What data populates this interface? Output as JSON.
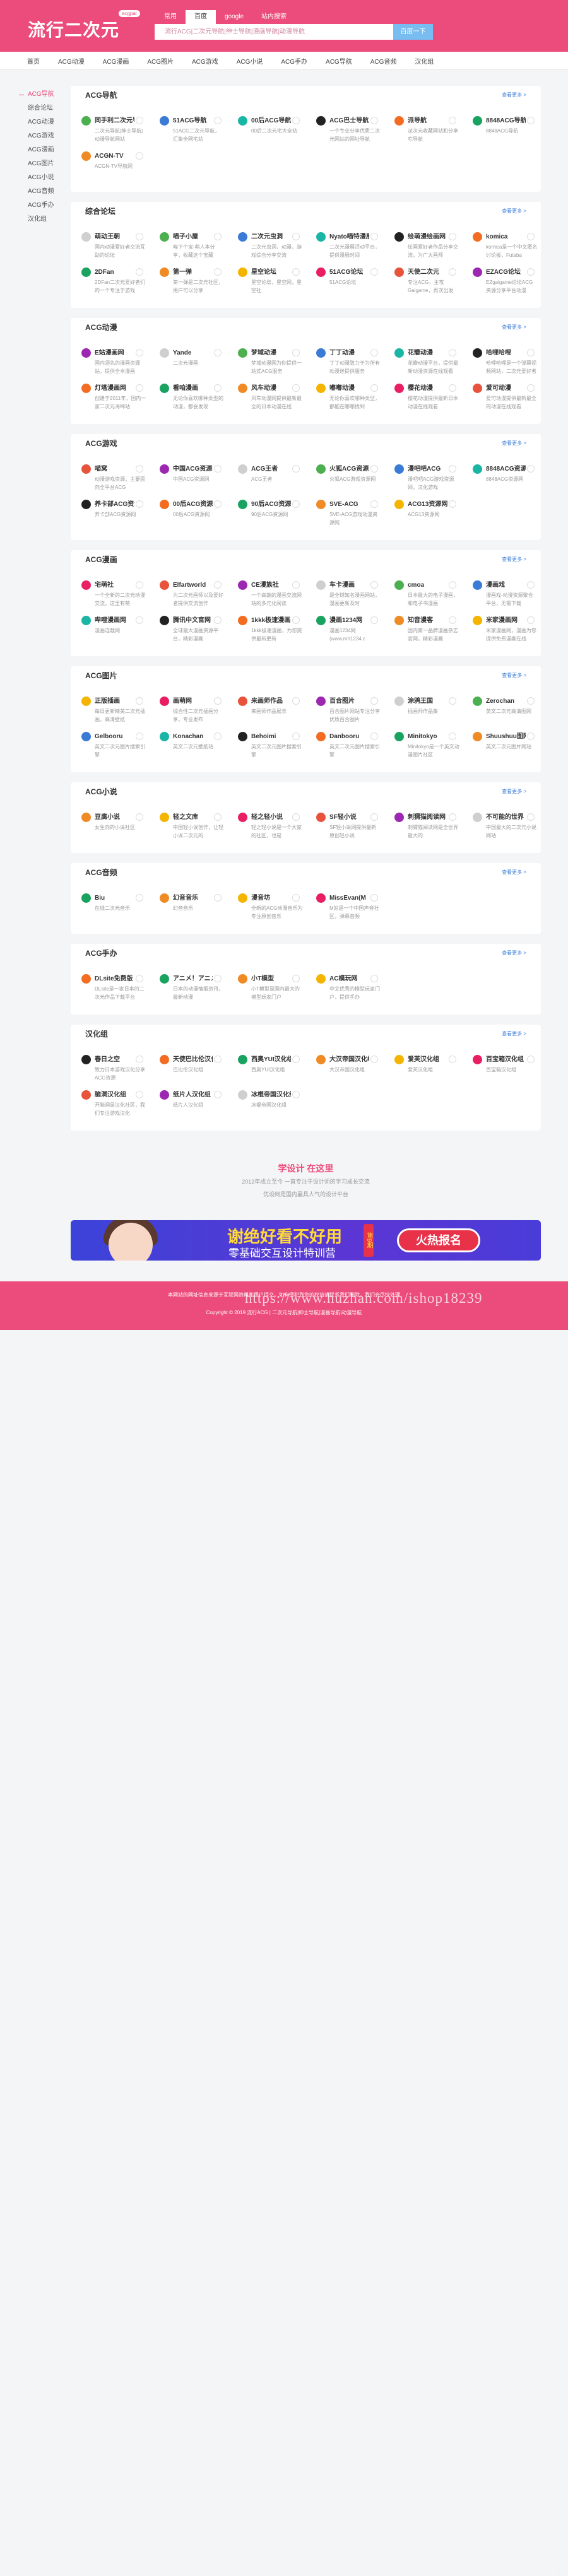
{
  "header": {
    "logo": "流行二次元",
    "logo_badge": "acgpai",
    "tabs": [
      "常用",
      "百度",
      "google",
      "站内搜索"
    ],
    "active_tab": 1,
    "search_placeholder": "流行ACG|二次元导航|绅士导航|漫画导航|动漫导航",
    "search_button": "百度一下"
  },
  "nav": [
    "首页",
    "ACG动漫",
    "ACG漫画",
    "ACG图片",
    "ACG游戏",
    "ACG小说",
    "ACG手办",
    "ACG导航",
    "ACG音频",
    "汉化组"
  ],
  "sidebar": [
    "ACG导航",
    "综合论坛",
    "ACG动漫",
    "ACG游戏",
    "ACG漫画",
    "ACG图片",
    "ACG小说",
    "ACG音频",
    "ACG手办",
    "汉化组"
  ],
  "sidebar_active": 0,
  "more_label": "查看更多 >",
  "sections": [
    {
      "title": "ACG导航",
      "items": [
        {
          "name": "同手利二次元导航",
          "desc": "二次元导航|绅士导航|动漫导航网站"
        },
        {
          "name": "51ACG导航",
          "desc": "51ACG二次元导航，汇集全网宅站"
        },
        {
          "name": "00后ACG导航",
          "desc": "00后二次元宅大全站"
        },
        {
          "name": "ACG巴士导航",
          "desc": "一个专业分享优质二次元网站的网址导航"
        },
        {
          "name": "派导航",
          "desc": "派次元收藏网站和分享宅导航"
        },
        {
          "name": "8848ACG导航",
          "desc": "8848ACG导航"
        },
        {
          "name": "ACGN-TV",
          "desc": "ACGN-TV导航网"
        }
      ]
    },
    {
      "title": "综合论坛",
      "items": [
        {
          "name": "萌动王朝",
          "desc": "国内动漫爱好者交流互助的论坛"
        },
        {
          "name": "喵子小屋",
          "desc": "喵下个宝-萌人本分享，收藏这个宝藏"
        },
        {
          "name": "二次元虫洞",
          "desc": "二次元虫洞，动漫，游戏综合分享交流"
        },
        {
          "name": "Nyato喵特漫展",
          "desc": "二次元漫展活动平台，提供漫展时间"
        },
        {
          "name": "绘萌漫绘画网",
          "desc": "绘画爱好者作品分享交流，为广大画师"
        },
        {
          "name": "komica",
          "desc": "komica是一个中文匿名讨论板，Futaba"
        },
        {
          "name": "2DFan",
          "desc": "2DFan二次元爱好者们的一个专注于游戏"
        },
        {
          "name": "第一弹",
          "desc": "第一弹是二次元社区，用户可以分享"
        },
        {
          "name": "星空论坛",
          "desc": "星空论坛，星空网，星空社"
        },
        {
          "name": "51ACG论坛",
          "desc": "51ACG论坛"
        },
        {
          "name": "天使二次元",
          "desc": "专注ACG，主攻Galgame，再次出发"
        },
        {
          "name": "EZACG论坛",
          "desc": "EZgalgame论坛ACG资源分享平台动漫"
        }
      ]
    },
    {
      "title": "ACG动漫",
      "items": [
        {
          "name": "E站漫画网",
          "desc": "国内领先的漫画资源站，提供全本漫画"
        },
        {
          "name": "Yande",
          "desc": "二次元漫画"
        },
        {
          "name": "梦域动漫",
          "desc": "梦域动漫网为你提供一站式ACG服务"
        },
        {
          "name": "丁丁动漫",
          "desc": "丁丁动漫致力于为所有动漫迷提供服务"
        },
        {
          "name": "花瓣动漫",
          "desc": "花瓣动漫平台，提供最新动漫资源在线观看"
        },
        {
          "name": "哈哩哈哩",
          "desc": "哈哩哈哩是一个弹幕视频网站，二次元爱好者"
        },
        {
          "name": "灯塔漫画网",
          "desc": "创建于2011年，国内一家二次元海绵站"
        },
        {
          "name": "看咱漫画",
          "desc": "无论你喜欢哪种类型的动漫，都会发现"
        },
        {
          "name": "风车动漫",
          "desc": "风车动漫网提供最新最全的日本动漫在线"
        },
        {
          "name": "嘟嘟动漫",
          "desc": "无论你喜欢哪种类型，都能在嘟嘟找到"
        },
        {
          "name": "樱花动漫",
          "desc": "樱花动漫提供最新日本动漫在线观看"
        },
        {
          "name": "爱可动漫",
          "desc": "爱可动漫提供最新最全的动漫在线观看"
        }
      ]
    },
    {
      "title": "ACG游戏",
      "items": [
        {
          "name": "喵窝",
          "desc": "动漫游戏资源，主要面向全平台ACG"
        },
        {
          "name": "中国ACG资源网",
          "desc": "中国ACG资源网"
        },
        {
          "name": "ACG王者",
          "desc": "ACG王者"
        },
        {
          "name": "火狐ACG资源网",
          "desc": "火狐ACG游戏资源网"
        },
        {
          "name": "漫吧吧ACG",
          "desc": "漫吧吧ACG游戏资源网，汉化游戏"
        },
        {
          "name": "8848ACG资源",
          "desc": "8848ACG资源网"
        },
        {
          "name": "养卡部ACG资源",
          "desc": "养卡部ACG资源网"
        },
        {
          "name": "00后ACG资源",
          "desc": "00后ACG资源网"
        },
        {
          "name": "90后ACG资源",
          "desc": "90后ACG资源网"
        },
        {
          "name": "SVE-ACG",
          "desc": "SVE-ACG游戏动漫资源网"
        },
        {
          "name": "ACG13资源网",
          "desc": "ACG13资源网"
        }
      ]
    },
    {
      "title": "ACG漫画",
      "items": [
        {
          "name": "宅萌社",
          "desc": "一个全新的二次元动漫交流，这里有萌"
        },
        {
          "name": "Elfartworld",
          "desc": "为二次元画师以及爱好者提供交流创作"
        },
        {
          "name": "CE漫族社",
          "desc": "一个高端的漫画交流网站的多元化阅读"
        },
        {
          "name": "车卡漫画",
          "desc": "是全球知名漫画网站，漫画更新及时"
        },
        {
          "name": "cmoa",
          "desc": "日本最大的电子漫画，和电子书漫画"
        },
        {
          "name": "漫画戏",
          "desc": "漫画戏-动漫资源聚合平台，无需下载"
        },
        {
          "name": "哔哩漫画网",
          "desc": "漫画连载网"
        },
        {
          "name": "腾讯中文官网",
          "desc": "全球最大漫画资源平台，精彩漫画"
        },
        {
          "name": "1kkk极速漫画",
          "desc": "1kkk极速漫画，为您提供最新更新"
        },
        {
          "name": "漫画1234网",
          "desc": "漫画1234网(www.mh1234.c"
        },
        {
          "name": "知音漫客",
          "desc": "国内第一品牌漫画杂志官网，精彩漫画"
        },
        {
          "name": "米家漫画网",
          "desc": "米家漫画网，漫画为您提供免费漫画在线"
        }
      ]
    },
    {
      "title": "ACG图片",
      "items": [
        {
          "name": "正版插画",
          "desc": "每日更新精美二次元插画，高清壁纸"
        },
        {
          "name": "画萌网",
          "desc": "综合性二次元插画分享，专业发布"
        },
        {
          "name": "来画师作品",
          "desc": "来画师作品展示"
        },
        {
          "name": "百合图片",
          "desc": "百合图片网站专注分享优质百合图片"
        },
        {
          "name": "涂鸦王国",
          "desc": "插画师作品集"
        },
        {
          "name": "Zerochan",
          "desc": "英文二次元高清图网"
        },
        {
          "name": "Gelbooru",
          "desc": "英文二次元图片搜索引擎"
        },
        {
          "name": "Konachan",
          "desc": "英文二次元壁纸站"
        },
        {
          "name": "Behoimi",
          "desc": "英文二次元图片搜索引擎"
        },
        {
          "name": "Danbooru",
          "desc": "英文二次元图片搜索引擎"
        },
        {
          "name": "Minitokyo",
          "desc": "Minitokyo是一个英文动漫图片社区"
        },
        {
          "name": "Shuushuu图网",
          "desc": "英文二次元图片网站"
        }
      ]
    },
    {
      "title": "ACG小说",
      "items": [
        {
          "name": "豆腐小说",
          "desc": "女生向的小说社区"
        },
        {
          "name": "轻之文库",
          "desc": "中国轻小说创作，让轻小说二次元的"
        },
        {
          "name": "轻之轻小说",
          "desc": "轻之轻小说是一个大家的社区，也是"
        },
        {
          "name": "SF轻小说",
          "desc": "SF轻小说网提供最新原创轻小说"
        },
        {
          "name": "刺猬猫阅读网",
          "desc": "刺猬猫阅读网是全世界最大的"
        },
        {
          "name": "不可能的世界",
          "desc": "中国最大的二次元小说网站"
        }
      ]
    },
    {
      "title": "ACG音频",
      "items": [
        {
          "name": "Biu",
          "desc": "在线二次元音乐"
        },
        {
          "name": "幻音音乐",
          "desc": "幻音音乐"
        },
        {
          "name": "漫音坊",
          "desc": "全新的ACG动漫音乐为专注原创音乐"
        },
        {
          "name": "MissEvan(M",
          "desc": "M站是一个中国声音社区，弹幕音频"
        }
      ]
    },
    {
      "title": "ACG手办",
      "items": [
        {
          "name": "DLsite免费版",
          "desc": "DLsite是一家日本的二次元作品下载平台"
        },
        {
          "name": "アニメ！アニメ",
          "desc": "日本的动漫情报资讯，最新动漫"
        },
        {
          "name": "小T模型",
          "desc": "小T模型是国内最大的模型玩家门户"
        },
        {
          "name": "AC模玩网",
          "desc": "中文优秀的模型玩家门户，提供手办"
        }
      ]
    },
    {
      "title": "汉化组",
      "items": [
        {
          "name": "春日之空",
          "desc": "致力日本游戏汉化分享ACG资源"
        },
        {
          "name": "天使巴比伦汉化",
          "desc": "巴比伦汉化组"
        },
        {
          "name": "西奥YUI汉化组",
          "desc": "西奥YUI汉化组"
        },
        {
          "name": "大汉帝国汉化组",
          "desc": "大汉帝国汉化组"
        },
        {
          "name": "爱芙汉化组",
          "desc": "爱芙汉化组"
        },
        {
          "name": "百宝箱汉化组",
          "desc": "百宝箱汉化组"
        },
        {
          "name": "脑洞汉化组",
          "desc": "开脑洞是汉化社区，我们专注游戏汉化"
        },
        {
          "name": "纸片人汉化组",
          "desc": "纸片人汉化组"
        },
        {
          "name": "冰棍帝国汉化组",
          "desc": "冰棍帝国汉化组"
        }
      ]
    }
  ],
  "promo": {
    "title": "学设计 在这里",
    "lines": [
      "2012年成立至今 一直专注于设计师的学习成长交流",
      "优设网是国内最具人气的设计平台"
    ]
  },
  "banner": {
    "headline": "谢绝好看不好用",
    "subline": "零基础交互设计特训营",
    "issue": "第9期",
    "button": "火热报名"
  },
  "footer": {
    "lines": [
      "本网站的网址信息来源于互联网资料和用户提交，如有侵犯到您的权益请联系我们删除，我们会尽快处理",
      "Copyright © 2019 流行ACG | 二次元导航|绅士导航|漫画导航|动漫导航"
    ]
  },
  "watermark": "https://www.huzhan.com/ishop18239"
}
